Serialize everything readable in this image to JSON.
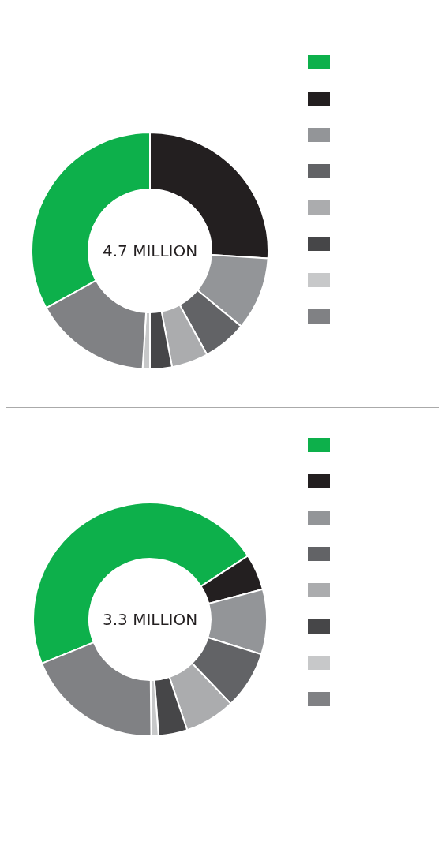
{
  "chart_data": [
    {
      "type": "donut",
      "annotations": [
        "4.7 MILLION"
      ],
      "categories": [
        null,
        null,
        null,
        null,
        null,
        null,
        null,
        null
      ],
      "values": [
        33,
        26,
        10,
        6,
        5,
        3,
        1,
        16
      ],
      "colors": [
        "#0db04b",
        "#231f20",
        "#939598",
        "#626366",
        "#abacae",
        "#464648",
        "#c7c8c9",
        "#808184"
      ]
    },
    {
      "type": "donut",
      "annotations": [
        "3.3 MILLION"
      ],
      "categories": [
        null,
        null,
        null,
        null,
        null,
        null,
        null,
        null
      ],
      "values": [
        47,
        5,
        9,
        8,
        7,
        4,
        1,
        19
      ],
      "colors": [
        "#0db04b",
        "#231f20",
        "#939598",
        "#626366",
        "#abacae",
        "#464648",
        "#c7c8c9",
        "#808184"
      ]
    }
  ]
}
